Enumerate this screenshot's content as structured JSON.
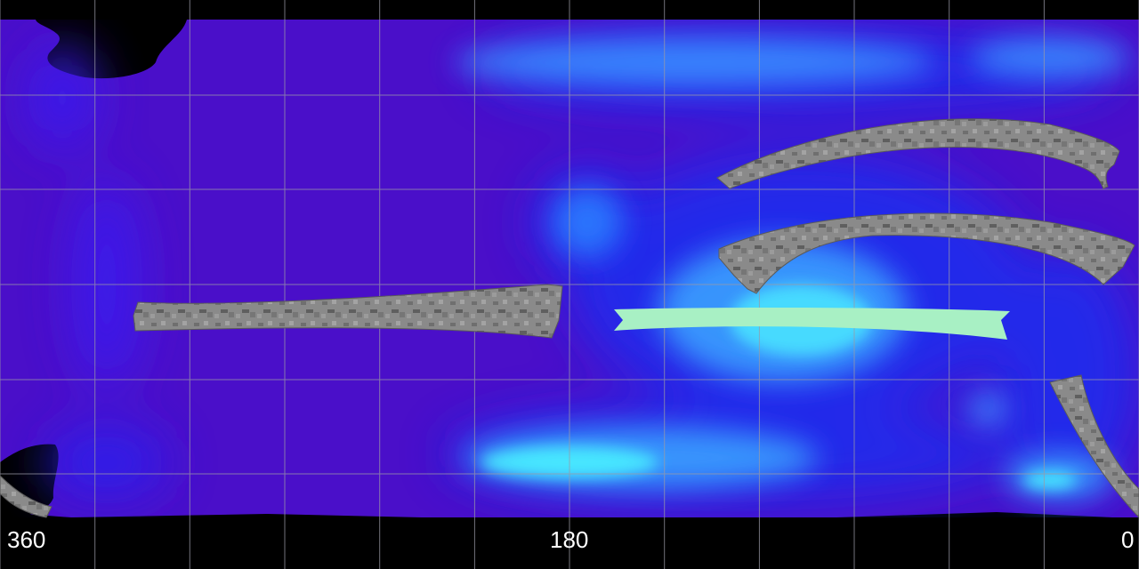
{
  "map": {
    "x_axis_labels": {
      "left": "360",
      "middle": "180",
      "right": "0"
    },
    "colors": {
      "background": "#000000",
      "base": "#4a0fc9",
      "mid": "#1a2df0",
      "high": "#3aa0ff",
      "peak": "#49f0ff",
      "grid": "#9a9aa6",
      "radar_swath": "#8b8b8b",
      "highlight_swath": "#a8f0c4"
    }
  }
}
